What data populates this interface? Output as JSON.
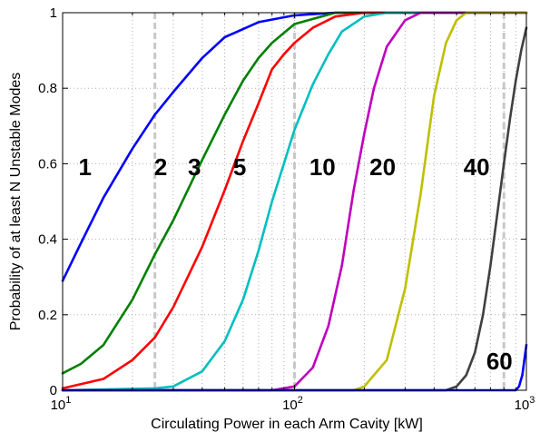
{
  "chart_data": {
    "type": "line",
    "title": "",
    "xlabel": "Circulating Power in each Arm Cavity [kW]",
    "ylabel": "Probability of at least N Unstable Modes",
    "xscale": "log",
    "xlim": [
      10,
      1000
    ],
    "ylim": [
      0,
      1
    ],
    "grid": true,
    "x_ticks": [
      {
        "value": 10,
        "base": "10",
        "exp": "1"
      },
      {
        "value": 100,
        "base": "10",
        "exp": "2"
      },
      {
        "value": 1000,
        "base": "10",
        "exp": "3"
      }
    ],
    "y_ticks": [
      {
        "value": 0,
        "label": "0"
      },
      {
        "value": 0.2,
        "label": "0.2"
      },
      {
        "value": 0.4,
        "label": "0.4"
      },
      {
        "value": 0.6,
        "label": "0.6"
      },
      {
        "value": 0.8,
        "label": "0.8"
      },
      {
        "value": 1,
        "label": "1"
      }
    ],
    "reference_lines_x": [
      25,
      100,
      800
    ],
    "series": [
      {
        "name": "1",
        "color": "#0000ff",
        "label_at": [
          12.5,
          0.57
        ],
        "points": [
          [
            10,
            0.29
          ],
          [
            12,
            0.39
          ],
          [
            15,
            0.51
          ],
          [
            20,
            0.64
          ],
          [
            25,
            0.73
          ],
          [
            30,
            0.79
          ],
          [
            40,
            0.88
          ],
          [
            50,
            0.935
          ],
          [
            70,
            0.975
          ],
          [
            100,
            0.993
          ],
          [
            150,
            1.0
          ],
          [
            1000,
            1.0
          ]
        ]
      },
      {
        "name": "2",
        "color": "#008000",
        "label_at": [
          26.5,
          0.57
        ],
        "points": [
          [
            10,
            0.045
          ],
          [
            12,
            0.07
          ],
          [
            15,
            0.12
          ],
          [
            20,
            0.24
          ],
          [
            25,
            0.36
          ],
          [
            30,
            0.45
          ],
          [
            40,
            0.61
          ],
          [
            50,
            0.73
          ],
          [
            60,
            0.82
          ],
          [
            70,
            0.88
          ],
          [
            80,
            0.92
          ],
          [
            100,
            0.97
          ],
          [
            150,
            1.0
          ],
          [
            1000,
            1.0
          ]
        ]
      },
      {
        "name": "3",
        "color": "#ff0000",
        "label_at": [
          37,
          0.57
        ],
        "points": [
          [
            10,
            0.005
          ],
          [
            15,
            0.03
          ],
          [
            20,
            0.08
          ],
          [
            25,
            0.14
          ],
          [
            30,
            0.22
          ],
          [
            40,
            0.38
          ],
          [
            50,
            0.53
          ],
          [
            60,
            0.66
          ],
          [
            70,
            0.76
          ],
          [
            80,
            0.85
          ],
          [
            90,
            0.89
          ],
          [
            100,
            0.92
          ],
          [
            120,
            0.96
          ],
          [
            150,
            0.99
          ],
          [
            200,
            1.0
          ],
          [
            1000,
            1.0
          ]
        ]
      },
      {
        "name": "5",
        "color": "#00bfbf",
        "label_at": [
          58,
          0.57
        ],
        "points": [
          [
            10,
            0.0
          ],
          [
            25,
            0.005
          ],
          [
            30,
            0.01
          ],
          [
            40,
            0.05
          ],
          [
            50,
            0.13
          ],
          [
            60,
            0.24
          ],
          [
            70,
            0.37
          ],
          [
            80,
            0.5
          ],
          [
            90,
            0.6
          ],
          [
            100,
            0.69
          ],
          [
            120,
            0.81
          ],
          [
            140,
            0.89
          ],
          [
            160,
            0.95
          ],
          [
            200,
            0.99
          ],
          [
            250,
            1.0
          ],
          [
            1000,
            1.0
          ]
        ]
      },
      {
        "name": "10",
        "color": "#bf00bf",
        "label_at": [
          132,
          0.57
        ],
        "points": [
          [
            10,
            0.0
          ],
          [
            80,
            0.0
          ],
          [
            100,
            0.01
          ],
          [
            120,
            0.06
          ],
          [
            140,
            0.17
          ],
          [
            160,
            0.33
          ],
          [
            180,
            0.53
          ],
          [
            200,
            0.68
          ],
          [
            220,
            0.8
          ],
          [
            250,
            0.91
          ],
          [
            300,
            0.98
          ],
          [
            350,
            1.0
          ],
          [
            1000,
            1.0
          ]
        ]
      },
      {
        "name": "20",
        "color": "#bfbf00",
        "label_at": [
          240,
          0.57
        ],
        "points": [
          [
            10,
            0.0
          ],
          [
            180,
            0.0
          ],
          [
            200,
            0.01
          ],
          [
            250,
            0.08
          ],
          [
            300,
            0.27
          ],
          [
            350,
            0.52
          ],
          [
            380,
            0.68
          ],
          [
            400,
            0.78
          ],
          [
            450,
            0.92
          ],
          [
            500,
            0.98
          ],
          [
            550,
            1.0
          ],
          [
            1000,
            1.0
          ]
        ]
      },
      {
        "name": "40",
        "color": "#404040",
        "label_at": [
          610,
          0.57
        ],
        "points": [
          [
            10,
            0.0
          ],
          [
            450,
            0.0
          ],
          [
            500,
            0.01
          ],
          [
            550,
            0.04
          ],
          [
            600,
            0.1
          ],
          [
            650,
            0.2
          ],
          [
            700,
            0.33
          ],
          [
            750,
            0.47
          ],
          [
            800,
            0.6
          ],
          [
            850,
            0.72
          ],
          [
            900,
            0.82
          ],
          [
            950,
            0.9
          ],
          [
            1000,
            0.96
          ]
        ]
      },
      {
        "name": "60",
        "color": "#0000ff",
        "label_at": [
          765,
          0.055
        ],
        "points": [
          [
            10,
            0.0
          ],
          [
            900,
            0.0
          ],
          [
            930,
            0.01
          ],
          [
            960,
            0.04
          ],
          [
            1000,
            0.12
          ]
        ]
      }
    ]
  }
}
